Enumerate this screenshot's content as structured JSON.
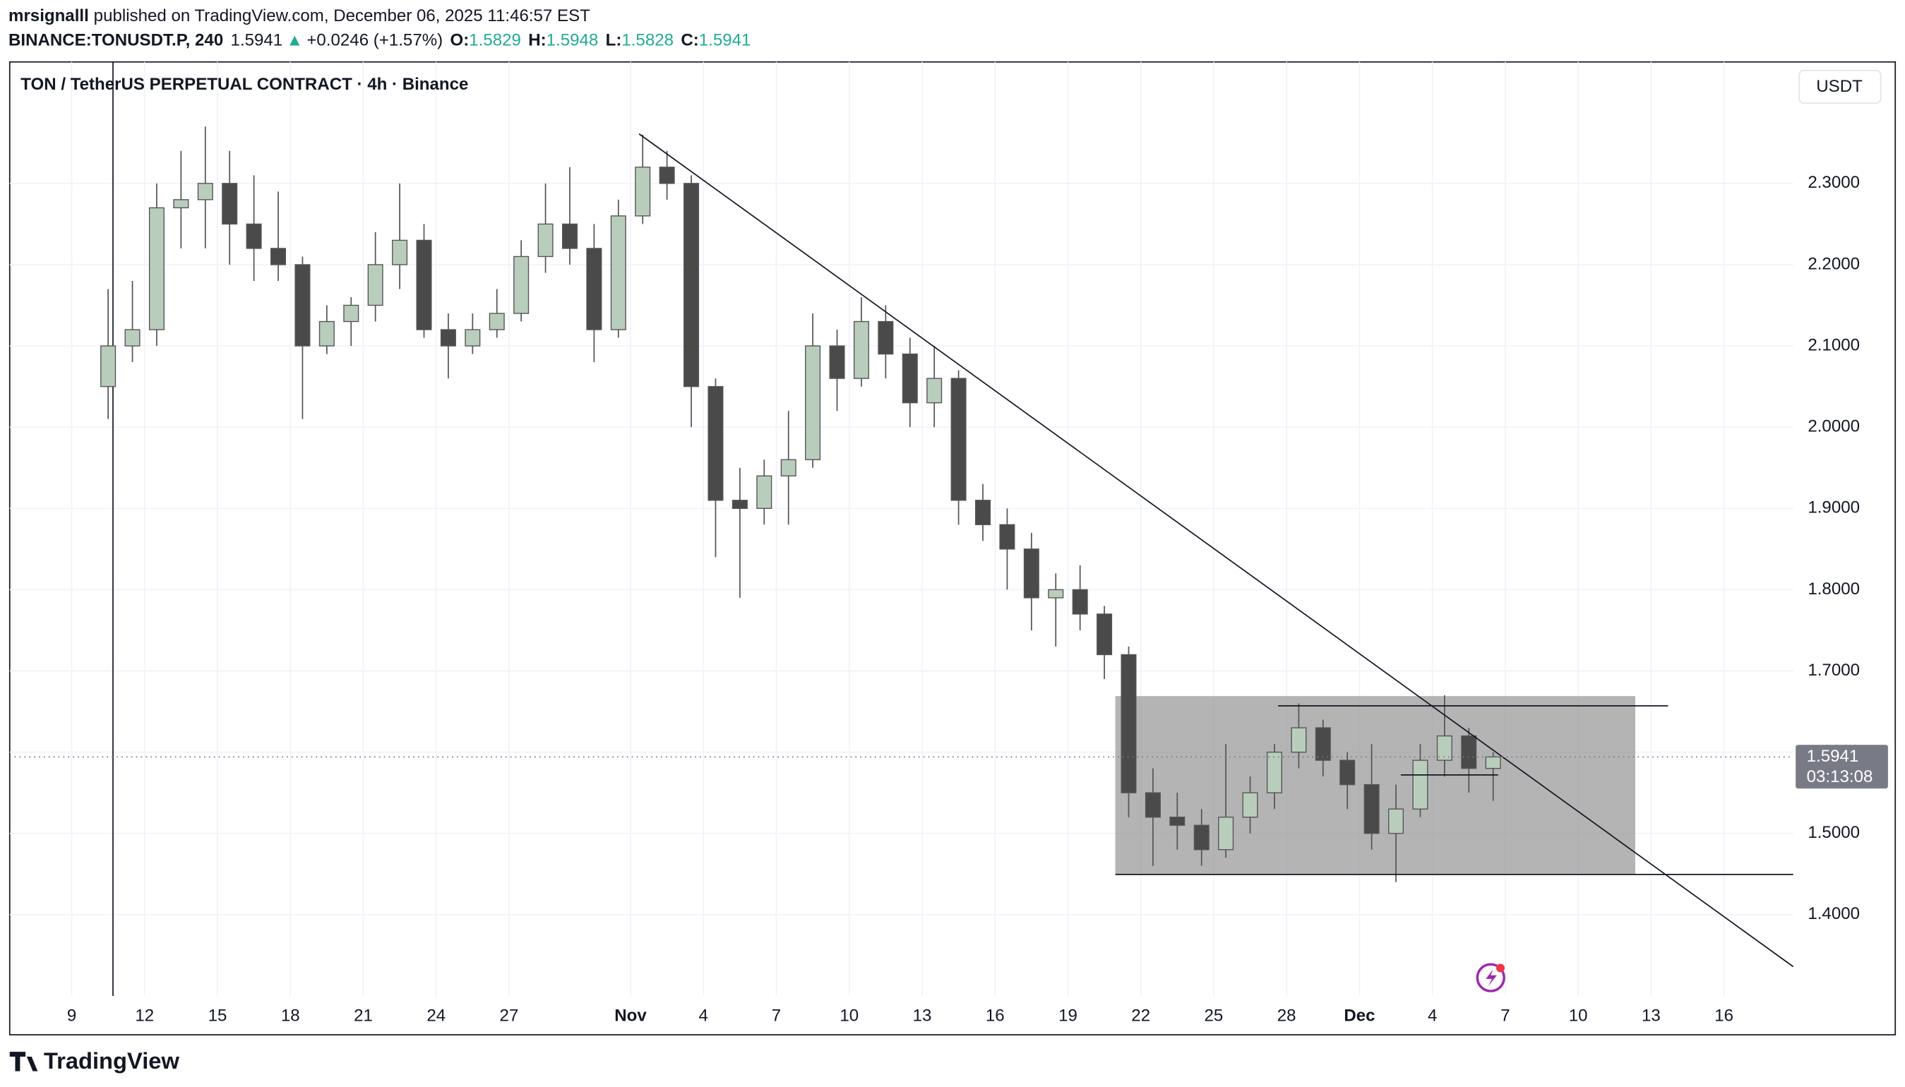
{
  "header": {
    "author": "mrsignalll",
    "published": "published on TradingView.com, December 06, 2025 11:46:57 EST",
    "symbol": "BINANCE:TONUSDT.P, 240",
    "price": "1.5941",
    "arrow": "▲",
    "change": "+0.0246 (+1.57%)",
    "o_label": "O:",
    "o": "1.5829",
    "h_label": "H:",
    "h": "1.5948",
    "l_label": "L:",
    "l": "1.5828",
    "c_label": "C:",
    "c": "1.5941"
  },
  "currency_button": "USDT",
  "countdown": "03:13:08",
  "brand": "TradingView",
  "chart_data": {
    "type": "candlestick",
    "title": "TON / TetherUS PERPETUAL CONTRACT · 4h · Binance",
    "x": [
      1.5,
      2.5,
      3.5,
      4.5,
      5.5,
      6.5,
      7.5,
      8.5,
      9.5,
      10.5,
      11.5,
      12.5,
      13.5,
      14.5,
      15.5,
      16.5,
      17.5,
      18.5,
      19.5,
      20.5,
      21.5,
      22.5,
      23.5,
      24.5,
      25.5,
      26.5,
      27.5,
      28.5,
      29.5,
      30.5,
      31.5,
      32.5,
      33.5,
      34.5,
      35.5,
      36.5,
      37.5,
      38.5,
      39.5,
      40.5,
      41.5,
      42.5,
      43.5,
      44.5,
      45.5,
      46.5,
      47.5,
      48.5,
      49.5,
      50.5,
      51.5,
      52.5,
      53.5,
      54.5,
      55.5,
      56.5,
      57.5,
      58.5
    ],
    "open": [
      2.05,
      2.1,
      2.12,
      2.27,
      2.28,
      2.3,
      2.25,
      2.22,
      2.2,
      2.1,
      2.13,
      2.15,
      2.2,
      2.23,
      2.12,
      2.1,
      2.12,
      2.14,
      2.21,
      2.25,
      2.22,
      2.12,
      2.26,
      2.32,
      2.3,
      2.05,
      1.91,
      1.9,
      1.94,
      1.96,
      2.1,
      2.06,
      2.13,
      2.09,
      2.03,
      2.06,
      1.91,
      1.88,
      1.85,
      1.79,
      1.8,
      1.77,
      1.72,
      1.55,
      1.52,
      1.51,
      1.48,
      1.52,
      1.55,
      1.6,
      1.63,
      1.59,
      1.56,
      1.5,
      1.53,
      1.59,
      1.62,
      1.58
    ],
    "high": [
      2.17,
      2.18,
      2.3,
      2.34,
      2.37,
      2.34,
      2.31,
      2.29,
      2.21,
      2.15,
      2.16,
      2.24,
      2.3,
      2.25,
      2.14,
      2.14,
      2.17,
      2.23,
      2.3,
      2.32,
      2.25,
      2.28,
      2.36,
      2.34,
      2.31,
      2.06,
      1.95,
      1.96,
      2.02,
      2.14,
      2.12,
      2.16,
      2.15,
      2.11,
      2.1,
      2.07,
      1.93,
      1.9,
      1.87,
      1.82,
      1.83,
      1.78,
      1.73,
      1.58,
      1.55,
      1.53,
      1.61,
      1.57,
      1.61,
      1.66,
      1.64,
      1.6,
      1.61,
      1.56,
      1.61,
      1.67,
      1.63,
      1.6
    ],
    "low": [
      2.01,
      2.08,
      2.1,
      2.22,
      2.22,
      2.2,
      2.18,
      2.18,
      2.01,
      2.09,
      2.1,
      2.13,
      2.17,
      2.11,
      2.06,
      2.09,
      2.11,
      2.13,
      2.19,
      2.2,
      2.08,
      2.11,
      2.25,
      2.28,
      2.0,
      1.84,
      1.79,
      1.88,
      1.88,
      1.95,
      2.02,
      2.05,
      2.06,
      2.0,
      2.0,
      1.88,
      1.86,
      1.8,
      1.75,
      1.73,
      1.75,
      1.69,
      1.52,
      1.46,
      1.48,
      1.46,
      1.47,
      1.5,
      1.53,
      1.58,
      1.57,
      1.53,
      1.48,
      1.44,
      1.52,
      1.57,
      1.55,
      1.54
    ],
    "close": [
      2.1,
      2.12,
      2.27,
      2.28,
      2.3,
      2.25,
      2.22,
      2.2,
      2.1,
      2.13,
      2.15,
      2.2,
      2.23,
      2.12,
      2.1,
      2.12,
      2.14,
      2.21,
      2.25,
      2.22,
      2.12,
      2.26,
      2.32,
      2.3,
      2.05,
      1.91,
      1.9,
      1.94,
      1.96,
      2.1,
      2.06,
      2.13,
      2.09,
      2.03,
      2.06,
      1.91,
      1.88,
      1.85,
      1.79,
      1.8,
      1.77,
      1.72,
      1.55,
      1.52,
      1.51,
      1.48,
      1.52,
      1.55,
      1.6,
      1.63,
      1.59,
      1.56,
      1.5,
      1.53,
      1.59,
      1.62,
      1.58,
      1.5941
    ],
    "up_color": "#b9cdbc",
    "down_color": "#4a4a4a",
    "wick_color": "#555555",
    "xlim": [
      -2.55,
      70.85
    ],
    "xticks": [
      {
        "value": 0,
        "label": "9"
      },
      {
        "value": 3,
        "label": "12"
      },
      {
        "value": 6,
        "label": "15"
      },
      {
        "value": 9,
        "label": "18"
      },
      {
        "value": 12,
        "label": "21"
      },
      {
        "value": 15,
        "label": "24"
      },
      {
        "value": 18,
        "label": "27"
      },
      {
        "value": 23,
        "label": "Nov"
      },
      {
        "value": 26,
        "label": "4"
      },
      {
        "value": 29,
        "label": "7"
      },
      {
        "value": 32,
        "label": "10"
      },
      {
        "value": 35,
        "label": "13"
      },
      {
        "value": 38,
        "label": "16"
      },
      {
        "value": 41,
        "label": "19"
      },
      {
        "value": 44,
        "label": "22"
      },
      {
        "value": 47,
        "label": "25"
      },
      {
        "value": 50,
        "label": "28"
      },
      {
        "value": 53,
        "label": "Dec"
      },
      {
        "value": 56,
        "label": "4"
      },
      {
        "value": 59,
        "label": "7"
      },
      {
        "value": 62,
        "label": "10"
      },
      {
        "value": 65,
        "label": "13"
      },
      {
        "value": 68,
        "label": "16"
      }
    ],
    "ylim": [
      1.3,
      2.4495
    ],
    "yticks": [
      {
        "value": 1.4,
        "label": "1.4000"
      },
      {
        "value": 1.5,
        "label": "1.5000"
      },
      {
        "value": 1.6,
        "label": "1.6000"
      },
      {
        "value": 1.7,
        "label": "1.7000"
      },
      {
        "value": 1.8,
        "label": "1.8000"
      },
      {
        "value": 1.9,
        "label": "1.9000"
      },
      {
        "value": 2.0,
        "label": "2.0000"
      },
      {
        "value": 2.1,
        "label": "2.1000"
      },
      {
        "value": 2.2,
        "label": "2.2000"
      },
      {
        "value": 2.3,
        "label": "2.3000"
      }
    ],
    "grid": true,
    "last_price": 1.5941,
    "drawings": {
      "trendline": {
        "x": [
          23.35,
          70.85
        ],
        "y": [
          2.361,
          1.336
        ]
      },
      "rectangle": {
        "x": [
          42.95,
          64.35
        ],
        "y": [
          1.4495,
          1.669
        ]
      },
      "hlines": [
        {
          "x": [
            42.95,
            70.85
          ],
          "y": 1.4495
        },
        {
          "x": [
            49.65,
            65.7
          ],
          "y": 1.657
        },
        {
          "x": [
            54.7,
            58.7
          ],
          "y": 1.572
        }
      ],
      "vline": 1.7
    }
  }
}
